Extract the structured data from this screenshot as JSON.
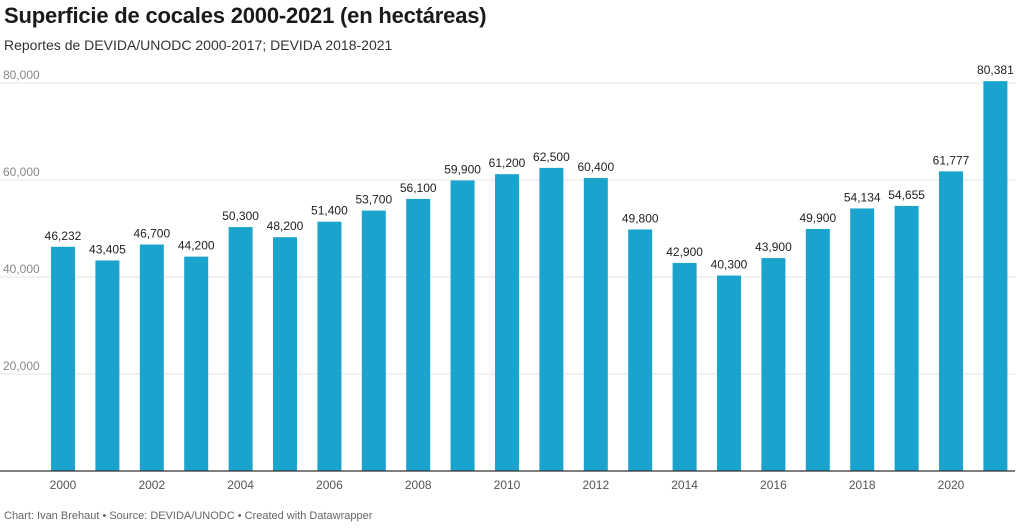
{
  "header": {
    "title": "Superficie de cocales 2000-2021 (en hectáreas)",
    "subtitle": "Reportes de DEVIDA/UNODC 2000-2017; DEVIDA 2018-2021"
  },
  "footer": {
    "credit": "Chart: Ivan Brehaut • Source: DEVIDA/UNODC • Created with Datawrapper"
  },
  "colors": {
    "bar": "#1aa3cc",
    "grid": "#e6e6e6",
    "axis": "#333333",
    "label": "#222222",
    "tick": "#888888"
  },
  "chart_data": {
    "type": "bar",
    "categories": [
      "2000",
      "2001",
      "2002",
      "2003",
      "2004",
      "2005",
      "2006",
      "2007",
      "2008",
      "2009",
      "2010",
      "2011",
      "2012",
      "2013",
      "2014",
      "2015",
      "2016",
      "2017",
      "2018",
      "2019",
      "2020",
      "2021"
    ],
    "values": [
      46232,
      43405,
      46700,
      44200,
      50300,
      48200,
      51400,
      53700,
      56100,
      59900,
      61200,
      62500,
      60400,
      49800,
      42900,
      40300,
      43900,
      49900,
      54134,
      54655,
      61777,
      80381
    ],
    "value_labels": [
      "46,232",
      "43,405",
      "46,700",
      "44,200",
      "50,300",
      "48,200",
      "51,400",
      "53,700",
      "56,100",
      "59,900",
      "61,200",
      "62,500",
      "60,400",
      "49,800",
      "42,900",
      "40,300",
      "43,900",
      "49,900",
      "54,134",
      "54,655",
      "61,777",
      "80,381"
    ],
    "x_tick_labels": [
      "2000",
      "",
      "2002",
      "",
      "2004",
      "",
      "2006",
      "",
      "2008",
      "",
      "2010",
      "",
      "2012",
      "",
      "2014",
      "",
      "2016",
      "",
      "2018",
      "",
      "2020",
      ""
    ],
    "y_ticks": [
      20000,
      40000,
      60000,
      80000
    ],
    "y_tick_labels": [
      "20,000",
      "40,000",
      "60,000",
      "80,000"
    ],
    "ylim": [
      0,
      80000
    ],
    "grid": true,
    "legend": "none"
  }
}
